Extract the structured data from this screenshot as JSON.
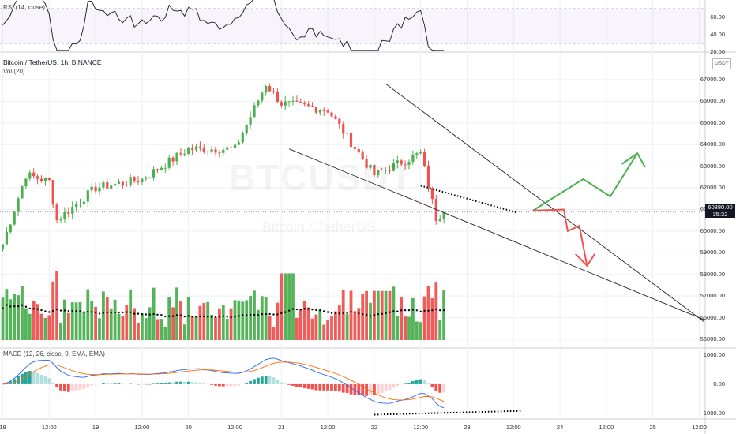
{
  "symbol_title": "Bitcoin / TetherUS, 1h, BINANCE",
  "volume_label": "Vol (20)",
  "rsi_label": "RSI (14, close)",
  "macd_label": "MACD (12, 26, close, 9, EMA, EMA)",
  "currency": "USDT",
  "watermark_symbol": "BTCUSDT",
  "watermark_name": "Bitcoin / TetherUS",
  "price_tag": {
    "price": "60880.00",
    "countdown": "35:32"
  },
  "colors": {
    "up": "#4caf50",
    "down": "#ef5350",
    "macd_line": "#2962ff",
    "signal_line": "#ff6d00",
    "rsi_line": "#131722",
    "arrow_up": "#4caf50",
    "arrow_down": "#ef5350"
  },
  "price_axis_labels": [
    "67000.00",
    "66000.00",
    "65000.00",
    "64000.00",
    "63000.00",
    "62000.00",
    "61000.00",
    "60000.00",
    "59000.00",
    "58000.00",
    "57000.00",
    "56000.00",
    "55000.00"
  ],
  "rsi_axis_labels": [
    "60.00",
    "40.00",
    "20.00"
  ],
  "macd_axis_labels": [
    "1000.00",
    "0.00",
    "−1000.00"
  ],
  "time_axis_labels": [
    "18",
    "12:00",
    "19",
    "12:00",
    "20",
    "12:00",
    "21",
    "12:00",
    "22",
    "12:00",
    "23",
    "12:00",
    "24",
    "12:00",
    "25",
    "12:00"
  ],
  "chart_data": {
    "type": "candlestick",
    "interval": "1h",
    "price_range": [
      54600,
      68200
    ],
    "candles_close_checkpoints": [
      {
        "time": "18 00:00",
        "close": 59400
      },
      {
        "time": "18 06:00",
        "close": 62600
      },
      {
        "time": "18 12:00",
        "close": 62300
      },
      {
        "time": "18 14:00",
        "close": 60500
      },
      {
        "time": "19 00:00",
        "close": 62000
      },
      {
        "time": "19 12:00",
        "close": 62400
      },
      {
        "time": "20 00:00",
        "close": 63800
      },
      {
        "time": "20 12:00",
        "close": 63800
      },
      {
        "time": "20 20:00",
        "close": 66800
      },
      {
        "time": "21 00:00",
        "close": 65900
      },
      {
        "time": "21 12:00",
        "close": 65600
      },
      {
        "time": "22 00:00",
        "close": 62600
      },
      {
        "time": "22 12:00",
        "close": 63600
      },
      {
        "time": "22 16:00",
        "close": 60600
      },
      {
        "time": "22 18:00",
        "close": 60880
      }
    ],
    "last_price": 60880,
    "rsi_range": [
      20,
      80
    ],
    "macd_range": [
      -1200,
      1250
    ]
  }
}
